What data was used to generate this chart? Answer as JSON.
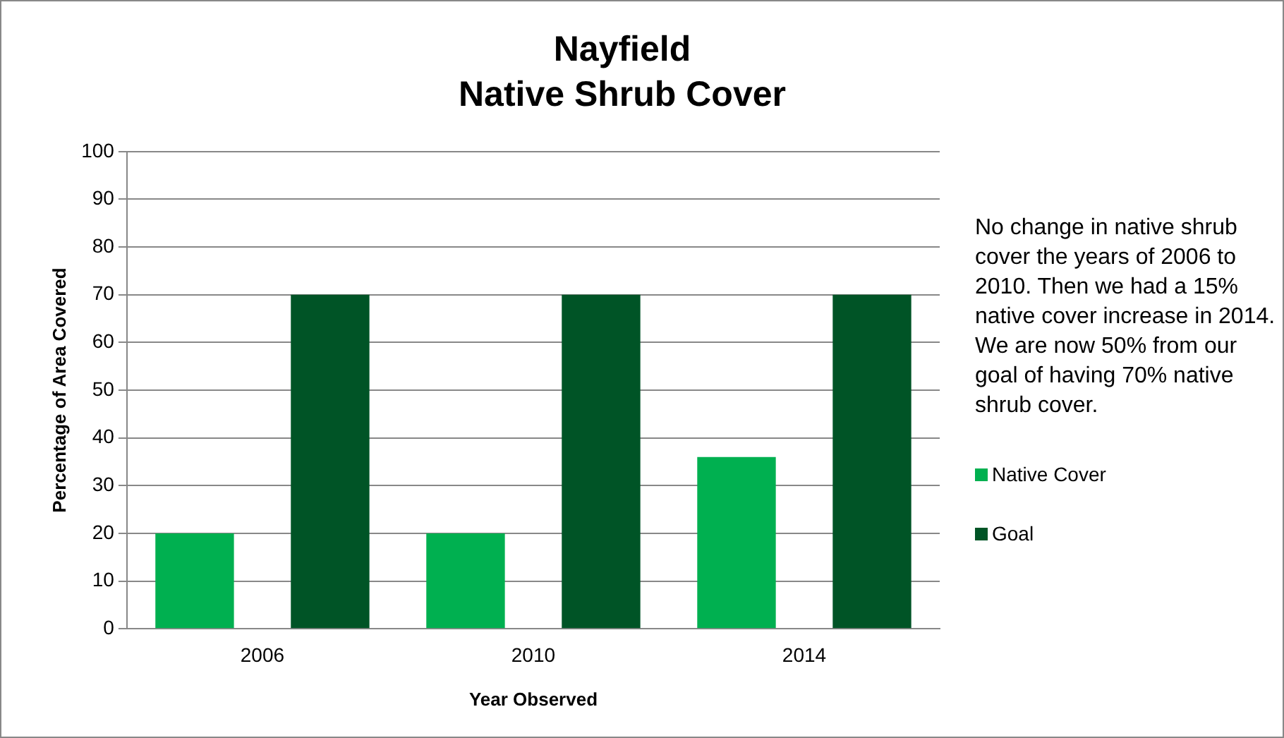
{
  "chart_data": {
    "type": "bar",
    "title": "Nayfield",
    "subtitle": "Native Shrub Cover",
    "xlabel": "Year Observed",
    "ylabel": "Percentage of Area Covered",
    "categories": [
      "2006",
      "2010",
      "2014"
    ],
    "series": [
      {
        "name": "Native Cover",
        "color": "#00b050",
        "values": [
          20,
          20,
          36
        ]
      },
      {
        "name": "Goal",
        "color": "#005426",
        "values": [
          70,
          70,
          70
        ]
      }
    ],
    "ylim": [
      0,
      100
    ],
    "yticks": [
      0,
      10,
      20,
      30,
      40,
      50,
      60,
      70,
      80,
      90,
      100
    ],
    "grid": "y",
    "legend": "right",
    "annotations": [
      "No change in  native shrub cover the years of  2006  to 2010.  Then we had a 15% native cover increase in 2014.  We are now 50%  from our goal of having 70% native shrub cover."
    ]
  }
}
